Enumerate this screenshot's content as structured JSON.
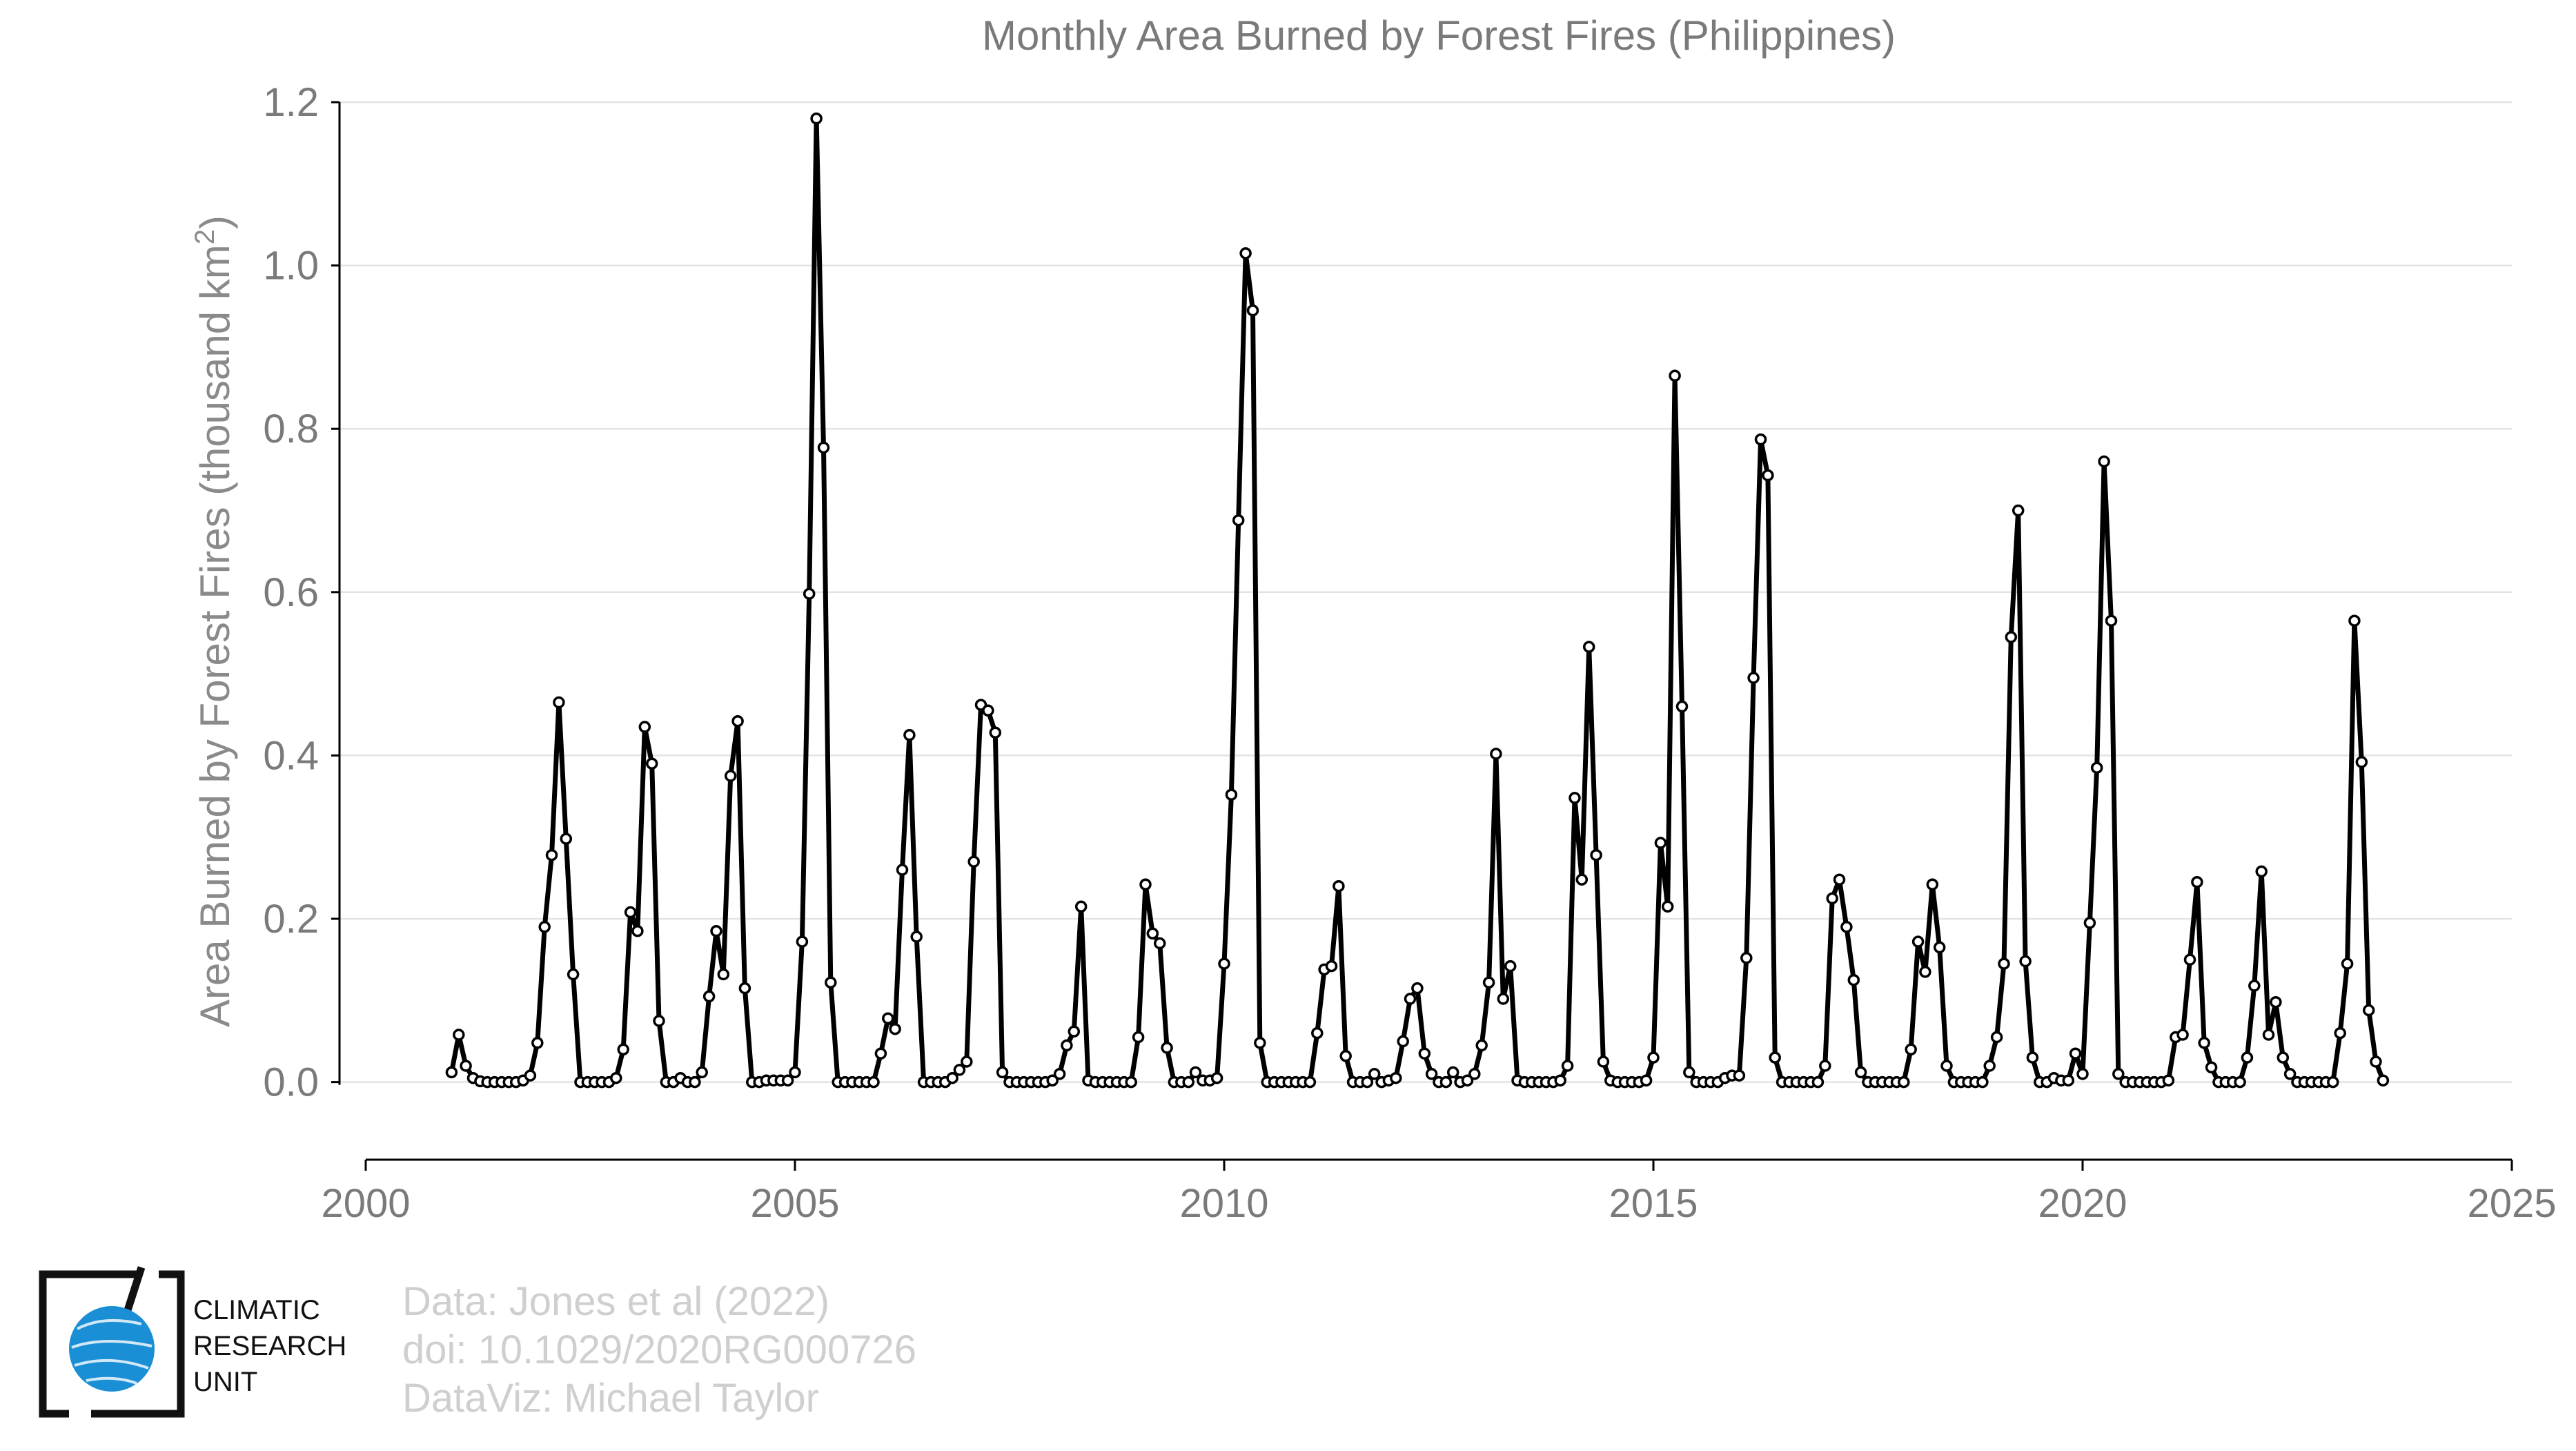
{
  "logo": {
    "name": "Climatic Research Unit",
    "lines": [
      "CLIMATIC",
      "RESEARCH",
      "UNIT"
    ],
    "globe_color": "#1a8fd6"
  },
  "credits": [
    "Data: Jones et al (2022)",
    "doi: 10.1029/2020RG000726",
    "DataViz: Michael Taylor"
  ],
  "colors": {
    "line": "#000000",
    "marker_fill": "#ffffff",
    "grid": "#e3e3e3",
    "title": "#7a7a7a",
    "credit": "#cfcfcf"
  },
  "chart_data": {
    "type": "line",
    "title": "Monthly Area Burned by Forest Fires (Philippines)",
    "ylabel": "Area Burned by Forest Fires (thousand km",
    "ylabel_sup": "2",
    "ylabel_end": ")",
    "xlabel": "",
    "xlim": [
      2000,
      2025
    ],
    "ylim": [
      -0.095,
      1.2
    ],
    "xticks": [
      2000,
      2005,
      2010,
      2015,
      2020,
      2025
    ],
    "xtick_labels": [
      "2000",
      "2005",
      "2010",
      "2015",
      "2020",
      "2025"
    ],
    "yticks": [
      0.0,
      0.2,
      0.4,
      0.6,
      0.8,
      1.0,
      1.2
    ],
    "ytick_labels": [
      "0.0",
      "0.2",
      "0.4",
      "0.6",
      "0.8",
      "1.0",
      "1.2"
    ],
    "grid": true,
    "start": "2001-01",
    "series": [
      {
        "markers": "open-circle",
        "values": [
          0.012,
          0.058,
          0.02,
          0.005,
          0.001,
          0.0,
          0.0,
          0.0,
          0.0,
          0.0,
          0.002,
          0.008,
          0.048,
          0.19,
          0.278,
          0.465,
          0.298,
          0.132,
          0.0,
          0.0,
          0.0,
          0.0,
          0.0,
          0.005,
          0.04,
          0.208,
          0.185,
          0.435,
          0.39,
          0.075,
          0.0,
          0.0,
          0.005,
          0.0,
          0.0,
          0.012,
          0.105,
          0.185,
          0.132,
          0.375,
          0.442,
          0.115,
          0.0,
          0.0,
          0.002,
          0.002,
          0.002,
          0.002,
          0.012,
          0.172,
          0.598,
          1.18,
          0.777,
          0.122,
          0.0,
          0.0,
          0.0,
          0.0,
          0.0,
          0.0,
          0.035,
          0.078,
          0.065,
          0.26,
          0.425,
          0.178,
          0.0,
          0.0,
          0.0,
          0.0,
          0.005,
          0.015,
          0.025,
          0.27,
          0.462,
          0.455,
          0.428,
          0.012,
          0.0,
          0.0,
          0.0,
          0.0,
          0.0,
          0.0,
          0.002,
          0.01,
          0.045,
          0.062,
          0.215,
          0.002,
          0.0,
          0.0,
          0.0,
          0.0,
          0.0,
          0.0,
          0.055,
          0.242,
          0.182,
          0.17,
          0.042,
          0.0,
          0.0,
          0.0,
          0.012,
          0.002,
          0.002,
          0.005,
          0.145,
          0.352,
          0.688,
          1.015,
          0.945,
          0.048,
          0.0,
          0.0,
          0.0,
          0.0,
          0.0,
          0.0,
          0.0,
          0.06,
          0.138,
          0.142,
          0.24,
          0.032,
          0.0,
          0.0,
          0.0,
          0.01,
          0.0,
          0.002,
          0.005,
          0.05,
          0.102,
          0.115,
          0.035,
          0.01,
          0.0,
          0.0,
          0.012,
          0.0,
          0.002,
          0.01,
          0.045,
          0.122,
          0.402,
          0.102,
          0.142,
          0.002,
          0.0,
          0.0,
          0.0,
          0.0,
          0.0,
          0.002,
          0.02,
          0.348,
          0.248,
          0.533,
          0.278,
          0.025,
          0.002,
          0.0,
          0.0,
          0.0,
          0.0,
          0.002,
          0.03,
          0.293,
          0.215,
          0.865,
          0.46,
          0.012,
          0.0,
          0.0,
          0.0,
          0.0,
          0.005,
          0.008,
          0.008,
          0.152,
          0.495,
          0.787,
          0.743,
          0.03,
          0.0,
          0.0,
          0.0,
          0.0,
          0.0,
          0.0,
          0.02,
          0.225,
          0.248,
          0.19,
          0.125,
          0.012,
          0.0,
          0.0,
          0.0,
          0.0,
          0.0,
          0.0,
          0.04,
          0.172,
          0.135,
          0.242,
          0.165,
          0.02,
          0.0,
          0.0,
          0.0,
          0.0,
          0.0,
          0.02,
          0.055,
          0.145,
          0.545,
          0.7,
          0.148,
          0.03,
          0.0,
          0.0,
          0.005,
          0.002,
          0.002,
          0.035,
          0.01,
          0.195,
          0.385,
          0.76,
          0.565,
          0.01,
          0.0,
          0.0,
          0.0,
          0.0,
          0.0,
          0.0,
          0.002,
          0.055,
          0.058,
          0.15,
          0.245,
          0.048,
          0.018,
          0.0,
          0.0,
          0.0,
          0.0,
          0.03,
          0.118,
          0.258,
          0.058,
          0.098,
          0.03,
          0.01,
          0.0,
          0.0,
          0.0,
          0.0,
          0.0,
          0.0,
          0.06,
          0.145,
          0.565,
          0.392,
          0.088,
          0.025,
          0.002
        ]
      }
    ]
  }
}
